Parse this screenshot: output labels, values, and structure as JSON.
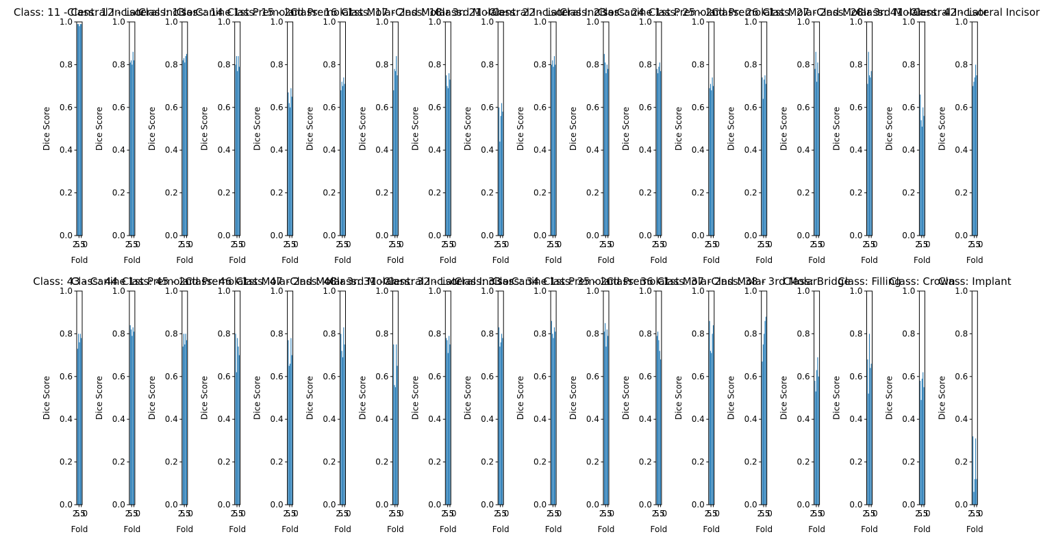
{
  "figure": {
    "background": "#ffffff",
    "bar_color": "#1f77b4"
  },
  "chart_data": [
    {
      "type": "bar",
      "title": "Class: 11 - Central Incisor",
      "xlabel": "Fold",
      "ylabel": "Dice Score",
      "ylim": [
        0,
        1
      ],
      "xticks": [
        "2.5",
        "5.0"
      ],
      "yticks": [
        "0.0",
        "0.2",
        "0.4",
        "0.6",
        "0.8",
        "1.0"
      ],
      "x": [
        1,
        2,
        3,
        4,
        5
      ],
      "values": [
        0.99,
        0.99,
        0.98,
        0.99,
        0.99
      ]
    },
    {
      "type": "bar",
      "title": "Class: 12 - Lateral Incisor",
      "xlabel": "Fold",
      "ylabel": "Dice Score",
      "ylim": [
        0,
        1
      ],
      "xticks": [
        "2.5",
        "5.0"
      ],
      "yticks": [
        "0.0",
        "0.2",
        "0.4",
        "0.6",
        "0.8",
        "1.0"
      ],
      "x": [
        1,
        2,
        3,
        4,
        5
      ],
      "values": [
        0.81,
        0.82,
        0.8,
        0.86,
        0.82
      ]
    },
    {
      "type": "bar",
      "title": "Class: 13 - Canine",
      "xlabel": "Fold",
      "ylabel": "Dice Score",
      "ylim": [
        0,
        1
      ],
      "xticks": [
        "2.5",
        "5.0"
      ],
      "yticks": [
        "0.0",
        "0.2",
        "0.4",
        "0.6",
        "0.8",
        "1.0"
      ],
      "x": [
        1,
        2,
        3,
        4,
        5
      ],
      "values": [
        0.82,
        0.83,
        0.81,
        0.84,
        0.85
      ]
    },
    {
      "type": "bar",
      "title": "Class: 14 - 1st Premolar",
      "xlabel": "Fold",
      "ylabel": "Dice Score",
      "ylim": [
        0,
        1
      ],
      "xticks": [
        "2.5",
        "5.0"
      ],
      "yticks": [
        "0.0",
        "0.2",
        "0.4",
        "0.6",
        "0.8",
        "1.0"
      ],
      "x": [
        1,
        2,
        3,
        4,
        5
      ],
      "values": [
        0.8,
        0.84,
        0.77,
        0.84,
        0.79
      ]
    },
    {
      "type": "bar",
      "title": "Class: 15 - 2nd Premolar",
      "xlabel": "Fold",
      "ylabel": "Dice Score",
      "ylim": [
        0,
        1
      ],
      "xticks": [
        "2.5",
        "5.0"
      ],
      "yticks": [
        "0.0",
        "0.2",
        "0.4",
        "0.6",
        "0.8",
        "1.0"
      ],
      "x": [
        1,
        2,
        3,
        4,
        5
      ],
      "values": [
        0.67,
        0.62,
        0.6,
        0.69,
        0.65
      ]
    },
    {
      "type": "bar",
      "title": "Class: 16 - 1st Molar",
      "xlabel": "Fold",
      "ylabel": "Dice Score",
      "ylim": [
        0,
        1
      ],
      "xticks": [
        "2.5",
        "5.0"
      ],
      "yticks": [
        "0.0",
        "0.2",
        "0.4",
        "0.6",
        "0.8",
        "1.0"
      ],
      "x": [
        1,
        2,
        3,
        4,
        5
      ],
      "values": [
        0.68,
        0.72,
        0.7,
        0.74,
        0.71
      ]
    },
    {
      "type": "bar",
      "title": "Class: 17 - 2nd Molar",
      "xlabel": "Fold",
      "ylabel": "Dice Score",
      "ylim": [
        0,
        1
      ],
      "xticks": [
        "2.5",
        "5.0"
      ],
      "yticks": [
        "0.0",
        "0.2",
        "0.4",
        "0.6",
        "0.8",
        "1.0"
      ],
      "x": [
        1,
        2,
        3,
        4,
        5
      ],
      "values": [
        0.68,
        0.78,
        0.77,
        0.84,
        0.75
      ]
    },
    {
      "type": "bar",
      "title": "Class: 18 - 3rd Molar",
      "xlabel": "Fold",
      "ylabel": "Dice Score",
      "ylim": [
        0,
        1
      ],
      "xticks": [
        "2.5",
        "5.0"
      ],
      "yticks": [
        "0.0",
        "0.2",
        "0.4",
        "0.6",
        "0.8",
        "1.0"
      ],
      "x": [
        1,
        2,
        3,
        4,
        5
      ],
      "values": [
        0.75,
        0.7,
        0.69,
        0.76,
        0.73
      ]
    },
    {
      "type": "bar",
      "title": "Class: 21 - Central Incisor",
      "xlabel": "Fold",
      "ylabel": "Dice Score",
      "ylim": [
        0,
        1
      ],
      "xticks": [
        "2.5",
        "5.0"
      ],
      "yticks": [
        "0.0",
        "0.2",
        "0.4",
        "0.6",
        "0.8",
        "1.0"
      ],
      "x": [
        1,
        2,
        3,
        4,
        5
      ],
      "values": [
        0.6,
        0.44,
        0.56,
        0.62,
        0.58
      ]
    },
    {
      "type": "bar",
      "title": "Class: 22 - Lateral Incisor",
      "xlabel": "Fold",
      "ylabel": "Dice Score",
      "ylim": [
        0,
        1
      ],
      "xticks": [
        "2.5",
        "5.0"
      ],
      "yticks": [
        "0.0",
        "0.2",
        "0.4",
        "0.6",
        "0.8",
        "1.0"
      ],
      "x": [
        1,
        2,
        3,
        4,
        5
      ],
      "values": [
        0.8,
        0.82,
        0.79,
        0.84,
        0.8
      ]
    },
    {
      "type": "bar",
      "title": "Class: 23 - Canine",
      "xlabel": "Fold",
      "ylabel": "Dice Score",
      "ylim": [
        0,
        1
      ],
      "xticks": [
        "2.5",
        "5.0"
      ],
      "yticks": [
        "0.0",
        "0.2",
        "0.4",
        "0.6",
        "0.8",
        "1.0"
      ],
      "x": [
        1,
        2,
        3,
        4,
        5
      ],
      "values": [
        0.85,
        0.81,
        0.76,
        0.8,
        0.78
      ]
    },
    {
      "type": "bar",
      "title": "Class: 24 - 1st Premolar",
      "xlabel": "Fold",
      "ylabel": "Dice Score",
      "ylim": [
        0,
        1
      ],
      "xticks": [
        "2.5",
        "5.0"
      ],
      "yticks": [
        "0.0",
        "0.2",
        "0.4",
        "0.6",
        "0.8",
        "1.0"
      ],
      "x": [
        1,
        2,
        3,
        4,
        5
      ],
      "values": [
        0.78,
        0.76,
        0.79,
        0.81,
        0.77
      ]
    },
    {
      "type": "bar",
      "title": "Class: 25 - 2nd Premolar",
      "xlabel": "Fold",
      "ylabel": "Dice Score",
      "ylim": [
        0,
        1
      ],
      "xticks": [
        "2.5",
        "5.0"
      ],
      "yticks": [
        "0.0",
        "0.2",
        "0.4",
        "0.6",
        "0.8",
        "1.0"
      ],
      "x": [
        1,
        2,
        3,
        4,
        5
      ],
      "values": [
        0.69,
        0.71,
        0.68,
        0.74,
        0.7
      ]
    },
    {
      "type": "bar",
      "title": "Class: 26 - 1st Molar",
      "xlabel": "Fold",
      "ylabel": "Dice Score",
      "ylim": [
        0,
        1
      ],
      "xticks": [
        "2.5",
        "5.0"
      ],
      "yticks": [
        "0.0",
        "0.2",
        "0.4",
        "0.6",
        "0.8",
        "1.0"
      ],
      "x": [
        1,
        2,
        3,
        4,
        5
      ],
      "values": [
        0.74,
        0.64,
        0.73,
        0.75,
        0.71
      ]
    },
    {
      "type": "bar",
      "title": "Class: 27 - 2nd Molar",
      "xlabel": "Fold",
      "ylabel": "Dice Score",
      "ylim": [
        0,
        1
      ],
      "xticks": [
        "2.5",
        "5.0"
      ],
      "yticks": [
        "0.0",
        "0.2",
        "0.4",
        "0.6",
        "0.8",
        "1.0"
      ],
      "x": [
        1,
        2,
        3,
        4,
        5
      ],
      "values": [
        0.78,
        0.86,
        0.72,
        0.81,
        0.76
      ]
    },
    {
      "type": "bar",
      "title": "Class: 28 - 3rd Molar",
      "xlabel": "Fold",
      "ylabel": "Dice Score",
      "ylim": [
        0,
        1
      ],
      "xticks": [
        "2.5",
        "5.0"
      ],
      "yticks": [
        "0.0",
        "0.2",
        "0.4",
        "0.6",
        "0.8",
        "1.0"
      ],
      "x": [
        1,
        2,
        3,
        4,
        5
      ],
      "values": [
        0.71,
        0.86,
        0.75,
        0.74,
        0.77
      ]
    },
    {
      "type": "bar",
      "title": "Class: 41 - Central Incisor",
      "xlabel": "Fold",
      "ylabel": "Dice Score",
      "ylim": [
        0,
        1
      ],
      "xticks": [
        "2.5",
        "5.0"
      ],
      "yticks": [
        "0.0",
        "0.2",
        "0.4",
        "0.6",
        "0.8",
        "1.0"
      ],
      "x": [
        1,
        2,
        3,
        4,
        5
      ],
      "values": [
        0.66,
        0.54,
        0.51,
        0.6,
        0.56
      ]
    },
    {
      "type": "bar",
      "title": "Class: 42 - Lateral Incisor",
      "xlabel": "Fold",
      "ylabel": "Dice Score",
      "ylim": [
        0,
        1
      ],
      "xticks": [
        "2.5",
        "5.0"
      ],
      "yticks": [
        "0.0",
        "0.2",
        "0.4",
        "0.6",
        "0.8",
        "1.0"
      ],
      "x": [
        1,
        2,
        3,
        4,
        5
      ],
      "values": [
        0.7,
        0.72,
        0.74,
        0.8,
        0.75
      ]
    },
    {
      "type": "bar",
      "title": "Class: 43 - Canine",
      "xlabel": "Fold",
      "ylabel": "Dice Score",
      "ylim": [
        0,
        1
      ],
      "xticks": [
        "2.5",
        "5.0"
      ],
      "yticks": [
        "0.0",
        "0.2",
        "0.4",
        "0.6",
        "0.8",
        "1.0"
      ],
      "x": [
        1,
        "2",
        3,
        4,
        5
      ],
      "values": [
        0.73,
        0.8,
        0.76,
        0.8,
        0.78
      ]
    },
    {
      "type": "bar",
      "title": "Class: 44 - 1st Premolar",
      "xlabel": "Fold",
      "ylabel": "Dice Score",
      "ylim": [
        0,
        1
      ],
      "xticks": [
        "2.5",
        "5.0"
      ],
      "yticks": [
        "0.0",
        "0.2",
        "0.4",
        "0.6",
        "0.8",
        "1.0"
      ],
      "x": [
        1,
        2,
        3,
        4,
        5
      ],
      "values": [
        0.84,
        0.82,
        0.79,
        0.83,
        0.81
      ]
    },
    {
      "type": "bar",
      "title": "Class: 45 - 2nd Premolar",
      "xlabel": "Fold",
      "ylabel": "Dice Score",
      "ylim": [
        0,
        1
      ],
      "xticks": [
        "2.5",
        "5.0"
      ],
      "yticks": [
        "0.0",
        "0.2",
        "0.4",
        "0.6",
        "0.8",
        "1.0"
      ],
      "x": [
        1,
        2,
        3,
        4,
        5
      ],
      "values": [
        0.74,
        0.8,
        0.75,
        0.8,
        0.77
      ]
    },
    {
      "type": "bar",
      "title": "Class: 46 - 1st Molar",
      "xlabel": "Fold",
      "ylabel": "Dice Score",
      "ylim": [
        0,
        1
      ],
      "xticks": [
        "2.5",
        "5.0"
      ],
      "yticks": [
        "0.0",
        "0.2",
        "0.4",
        "0.6",
        "0.8",
        "1.0"
      ],
      "x": [
        1,
        2,
        3,
        4,
        5
      ],
      "values": [
        0.8,
        0.62,
        0.78,
        0.74,
        0.7
      ]
    },
    {
      "type": "bar",
      "title": "Class: 47 - 2nd Molar",
      "xlabel": "Fold",
      "ylabel": "Dice Score",
      "ylim": [
        0,
        1
      ],
      "xticks": [
        "2.5",
        "5.0"
      ],
      "yticks": [
        "0.0",
        "0.2",
        "0.4",
        "0.6",
        "0.8",
        "1.0"
      ],
      "x": [
        1,
        2,
        3,
        4,
        5
      ],
      "values": [
        0.77,
        0.65,
        0.66,
        0.78,
        0.7
      ]
    },
    {
      "type": "bar",
      "title": "Class: 48 - 3rd Molar",
      "xlabel": "Fold",
      "ylabel": "Dice Score",
      "ylim": [
        0,
        1
      ],
      "xticks": [
        "2.5",
        "5.0"
      ],
      "yticks": [
        "0.0",
        "0.2",
        "0.4",
        "0.6",
        "0.8",
        "1.0"
      ],
      "x": [
        1,
        2,
        3,
        4,
        5
      ],
      "values": [
        0.8,
        0.72,
        0.69,
        0.83,
        0.75
      ]
    },
    {
      "type": "bar",
      "title": "Class: 31 - Central Incisor",
      "xlabel": "Fold",
      "ylabel": "Dice Score",
      "ylim": [
        0,
        1
      ],
      "xticks": [
        "2.5",
        "5.0"
      ],
      "yticks": [
        "0.0",
        "0.2",
        "0.4",
        "0.6",
        "0.8",
        "1.0"
      ],
      "x": [
        1,
        2,
        3,
        4,
        5
      ],
      "values": [
        0.75,
        0.56,
        0.55,
        0.75,
        0.65
      ]
    },
    {
      "type": "bar",
      "title": "Class: 32 - Lateral Incisor",
      "xlabel": "Fold",
      "ylabel": "Dice Score",
      "ylim": [
        0,
        1
      ],
      "xticks": [
        "2.5",
        "5.0"
      ],
      "yticks": [
        "0.0",
        "0.2",
        "0.4",
        "0.6",
        "0.8",
        "1.0"
      ],
      "x": [
        1,
        2,
        3,
        4,
        5
      ],
      "values": [
        0.78,
        0.77,
        0.71,
        0.79,
        0.75
      ]
    },
    {
      "type": "bar",
      "title": "Class: 33 - Canine",
      "xlabel": "Fold",
      "ylabel": "Dice Score",
      "ylim": [
        0,
        1
      ],
      "xticks": [
        "2.5",
        "5.0"
      ],
      "yticks": [
        "0.0",
        "0.2",
        "0.4",
        "0.6",
        "0.8",
        "1.0"
      ],
      "x": [
        1,
        2,
        3,
        4,
        5
      ],
      "values": [
        0.83,
        0.74,
        0.76,
        0.8,
        0.78
      ]
    },
    {
      "type": "bar",
      "title": "Class: 34 - 1st Premolar",
      "xlabel": "Fold",
      "ylabel": "Dice Score",
      "ylim": [
        0,
        1
      ],
      "xticks": [
        "2.5",
        "5.0"
      ],
      "yticks": [
        "0.0",
        "0.2",
        "0.4",
        "0.6",
        "0.8",
        "1.0"
      ],
      "x": [
        1,
        2,
        3,
        4,
        5
      ],
      "values": [
        0.86,
        0.8,
        0.78,
        0.83,
        0.81
      ]
    },
    {
      "type": "bar",
      "title": "Class: 35 - 2nd Premolar",
      "xlabel": "Fold",
      "ylabel": "Dice Score",
      "ylim": [
        0,
        1
      ],
      "xticks": [
        "2.5",
        "5.0"
      ],
      "yticks": [
        "0.0",
        "0.2",
        "0.4",
        "0.6",
        "0.8",
        "1.0"
      ],
      "x": [
        1,
        2,
        3,
        4,
        5
      ],
      "values": [
        0.81,
        0.85,
        0.74,
        0.82,
        0.79
      ]
    },
    {
      "type": "bar",
      "title": "Class: 36 - 1st Molar",
      "xlabel": "Fold",
      "ylabel": "Dice Score",
      "ylim": [
        0,
        1
      ],
      "xticks": [
        "2.5",
        "5.0"
      ],
      "yticks": [
        "0.0",
        "0.2",
        "0.4",
        "0.6",
        "0.8",
        "1.0"
      ],
      "x": [
        1,
        2,
        3,
        4,
        5
      ],
      "values": [
        0.79,
        0.81,
        0.77,
        0.72,
        0.68
      ]
    },
    {
      "type": "bar",
      "title": "Class: 37 - 2nd Molar",
      "xlabel": "Fold",
      "ylabel": "Dice Score",
      "ylim": [
        0,
        1
      ],
      "xticks": [
        "2.5",
        "5.0"
      ],
      "yticks": [
        "0.0",
        "0.2",
        "0.4",
        "0.6",
        "0.8",
        "1.0"
      ],
      "x": [
        1,
        2,
        3,
        4,
        5
      ],
      "values": [
        0.86,
        0.72,
        0.71,
        0.8,
        0.84
      ]
    },
    {
      "type": "bar",
      "title": "Class: 38 - 3rd Molar",
      "xlabel": "Fold",
      "ylabel": "Dice Score",
      "ylim": [
        0,
        1
      ],
      "xticks": [
        "2.5",
        "5.0"
      ],
      "yticks": [
        "0.0",
        "0.2",
        "0.4",
        "0.6",
        "0.8",
        "1.0"
      ],
      "x": [
        1,
        2,
        3,
        4,
        5
      ],
      "values": [
        0.67,
        0.75,
        0.8,
        0.86,
        0.88
      ]
    },
    {
      "type": "bar",
      "title": "Class: Bridge",
      "xlabel": "Fold",
      "ylabel": "Dice Score",
      "ylim": [
        0,
        1
      ],
      "xticks": [
        "2.5",
        "5.0"
      ],
      "yticks": [
        "0.0",
        "0.2",
        "0.4",
        "0.6",
        "0.8",
        "1.0"
      ],
      "x": [
        1,
        2,
        3,
        4,
        5
      ],
      "values": [
        0.58,
        0.53,
        0.63,
        0.69,
        0.6
      ]
    },
    {
      "type": "bar",
      "title": "Class: Filling",
      "xlabel": "Fold",
      "ylabel": "Dice Score",
      "ylim": [
        0,
        1
      ],
      "xticks": [
        "2.5",
        "5.0"
      ],
      "yticks": [
        "0.0",
        "0.2",
        "0.4",
        "0.6",
        "0.8",
        "1.0"
      ],
      "x": [
        1,
        2,
        3,
        4,
        5
      ],
      "values": [
        0.68,
        0.52,
        0.8,
        0.64,
        0.66
      ]
    },
    {
      "type": "bar",
      "title": "Class: Crown",
      "xlabel": "Fold",
      "ylabel": "Dice Score",
      "ylim": [
        0,
        1
      ],
      "xticks": [
        "2.5",
        "5.0"
      ],
      "yticks": [
        "0.0",
        "0.2",
        "0.4",
        "0.6",
        "0.8",
        "1.0"
      ],
      "x": [
        1,
        2,
        3,
        4,
        5
      ],
      "values": [
        0.58,
        0.49,
        0.59,
        0.62,
        0.55
      ]
    },
    {
      "type": "bar",
      "title": "Class: Implant",
      "xlabel": "Fold",
      "ylabel": "Dice Score",
      "ylim": [
        0,
        1
      ],
      "xticks": [
        "2.5",
        "5.0"
      ],
      "yticks": [
        "0.0",
        "0.2",
        "0.4",
        "0.6",
        "0.8",
        "1.0"
      ],
      "x": [
        1,
        2,
        3,
        4,
        5
      ],
      "values": [
        0.32,
        0.06,
        0.12,
        0.31,
        0.12
      ]
    }
  ]
}
